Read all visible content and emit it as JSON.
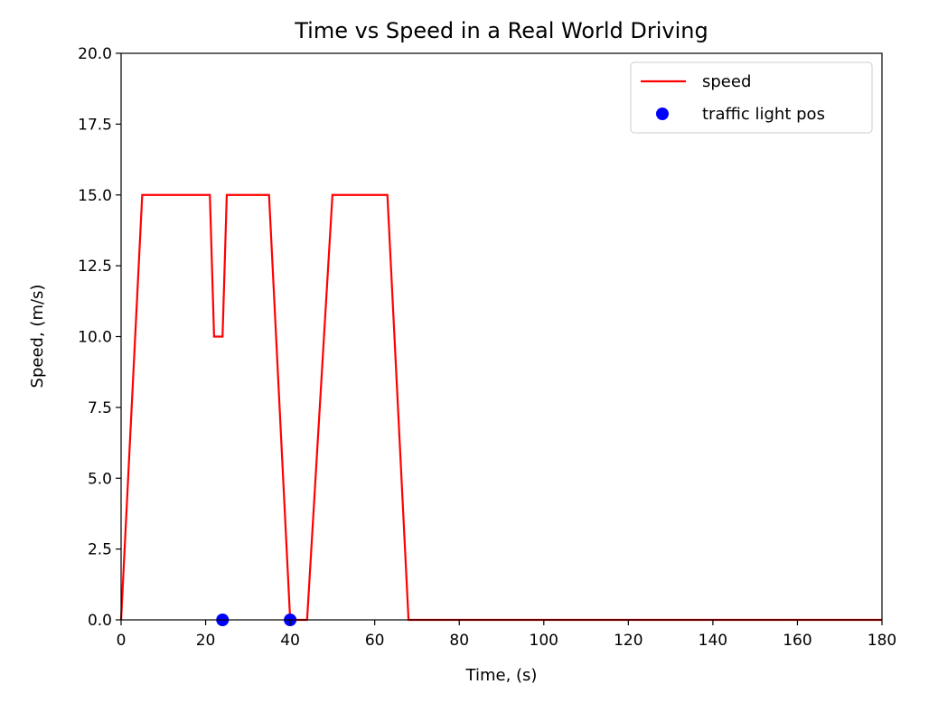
{
  "chart_data": {
    "type": "line",
    "title": "Time vs Speed in a Real World Driving",
    "xlabel": "Time, (s)",
    "ylabel": "Speed, (m/s)",
    "xlim": [
      0,
      180
    ],
    "ylim": [
      0,
      20
    ],
    "xticks": [
      0,
      20,
      40,
      60,
      80,
      100,
      120,
      140,
      160,
      180
    ],
    "xtick_labels": [
      "0",
      "20",
      "40",
      "60",
      "80",
      "100",
      "120",
      "140",
      "160",
      "180"
    ],
    "yticks": [
      0,
      2.5,
      5,
      7.5,
      10,
      12.5,
      15,
      17.5,
      20
    ],
    "ytick_labels": [
      "0.0",
      "2.5",
      "5.0",
      "7.5",
      "10.0",
      "12.5",
      "15.0",
      "17.5",
      "20.0"
    ],
    "grid": false,
    "legend_position": "top-right",
    "series": [
      {
        "name": "speed",
        "kind": "line",
        "color": "#ff0000",
        "x": [
          0,
          5,
          21,
          22,
          24,
          25,
          35,
          40,
          44,
          50,
          63,
          68,
          180
        ],
        "y": [
          0,
          15,
          15,
          10,
          10,
          15,
          15,
          0,
          0,
          15,
          15,
          0,
          0
        ]
      },
      {
        "name": "traffic light pos",
        "kind": "scatter",
        "color": "#0000ff",
        "x": [
          24,
          40
        ],
        "y": [
          0,
          0
        ]
      }
    ]
  }
}
